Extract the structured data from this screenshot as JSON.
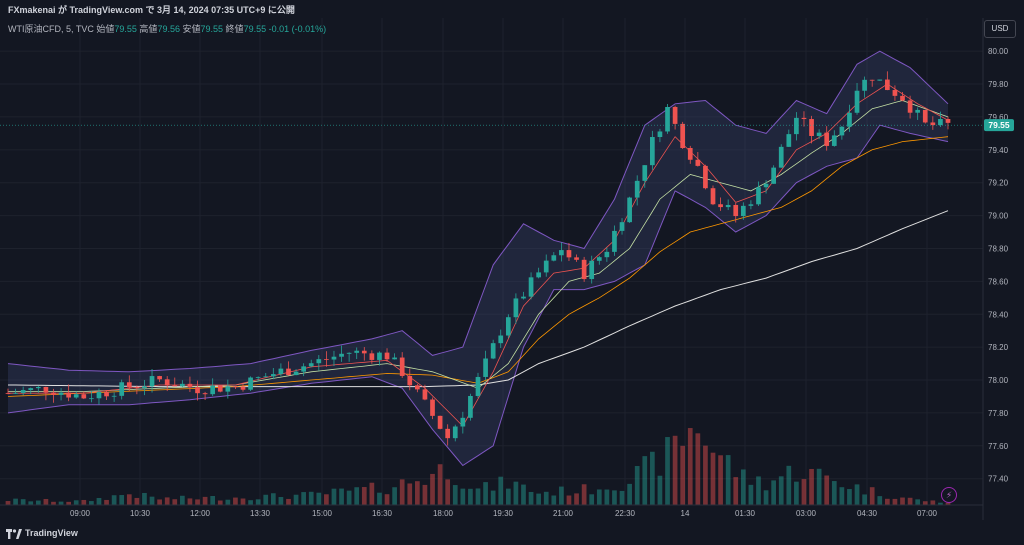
{
  "header": {
    "publish_line": "FXmakenai が TradingView.com で 3月 14, 2024 07:35 UTC+9 に公開"
  },
  "legend": {
    "symbol": "WTI原油CFD, 5, TVC",
    "open_label": "始値",
    "open_value": "79.55",
    "high_label": "高値",
    "high_value": "79.56",
    "low_label": "安値",
    "low_value": "79.55",
    "close_label": "終値",
    "close_value": "79.55",
    "change": "-0.01 (-0.01%)"
  },
  "currency_button": "USD",
  "last_price_label": "79.55",
  "brand": "TradingView",
  "colors": {
    "background": "#131722",
    "up": "#26a69a",
    "down": "#ef5350",
    "bollinger": "#7e57c2",
    "ma_fast": "#ef5350",
    "ma_mid": "#c5e1a5",
    "ma_slow": "#ff9800",
    "ma_long": "#e0e0e0",
    "last_price": "#26a69a"
  },
  "chart_data": {
    "type": "candlestick",
    "ylim": [
      77.24,
      80.08
    ],
    "y_ticks": [
      80.0,
      79.8,
      79.6,
      79.4,
      79.2,
      79.0,
      78.8,
      78.6,
      78.4,
      78.2,
      78.0,
      77.8,
      77.6,
      77.4
    ],
    "y_tick_labels": [
      "80.00",
      "79.80",
      "79.60",
      "79.40",
      "79.20",
      "79.00",
      "78.80",
      "78.60",
      "78.40",
      "78.20",
      "78.00",
      "77.80",
      "77.60",
      "77.40"
    ],
    "x_tick_labels": [
      "09:00",
      "10:30",
      "12:00",
      "13:30",
      "15:00",
      "16:30",
      "18:00",
      "19:30",
      "21:00",
      "22:30",
      "14",
      "01:30",
      "03:00",
      "04:30",
      "07:00"
    ],
    "last_price": 79.55,
    "price_path": [
      [
        0,
        77.92
      ],
      [
        5,
        77.95
      ],
      [
        10,
        77.9
      ],
      [
        15,
        77.95
      ],
      [
        20,
        78.0
      ],
      [
        25,
        77.95
      ],
      [
        30,
        77.96
      ],
      [
        35,
        78.04
      ],
      [
        40,
        78.1
      ],
      [
        45,
        78.17
      ],
      [
        50,
        78.15
      ],
      [
        52,
        78.05
      ],
      [
        55,
        77.85
      ],
      [
        58,
        77.65
      ],
      [
        60,
        77.8
      ],
      [
        63,
        78.1
      ],
      [
        66,
        78.4
      ],
      [
        70,
        78.65
      ],
      [
        73,
        78.8
      ],
      [
        76,
        78.65
      ],
      [
        79,
        78.8
      ],
      [
        82,
        79.1
      ],
      [
        85,
        79.45
      ],
      [
        87,
        79.65
      ],
      [
        89,
        79.45
      ],
      [
        91,
        79.3
      ],
      [
        93,
        79.1
      ],
      [
        96,
        79.0
      ],
      [
        99,
        79.15
      ],
      [
        101,
        79.3
      ],
      [
        104,
        79.6
      ],
      [
        106,
        79.5
      ],
      [
        108,
        79.45
      ],
      [
        110,
        79.55
      ],
      [
        112,
        79.78
      ],
      [
        114,
        79.85
      ],
      [
        116,
        79.78
      ],
      [
        118,
        79.72
      ],
      [
        121,
        79.55
      ],
      [
        124,
        79.55
      ]
    ],
    "bb_upper": [
      [
        0,
        78.1
      ],
      [
        8,
        78.06
      ],
      [
        16,
        78.05
      ],
      [
        24,
        78.07
      ],
      [
        32,
        78.1
      ],
      [
        40,
        78.18
      ],
      [
        48,
        78.25
      ],
      [
        52,
        78.3
      ],
      [
        56,
        78.15
      ],
      [
        60,
        78.2
      ],
      [
        64,
        78.7
      ],
      [
        68,
        78.95
      ],
      [
        72,
        78.85
      ],
      [
        76,
        78.8
      ],
      [
        80,
        79.1
      ],
      [
        84,
        79.55
      ],
      [
        88,
        79.68
      ],
      [
        92,
        79.7
      ],
      [
        96,
        79.55
      ],
      [
        100,
        79.5
      ],
      [
        104,
        79.7
      ],
      [
        108,
        79.62
      ],
      [
        112,
        79.92
      ],
      [
        115,
        80.0
      ],
      [
        119,
        79.9
      ],
      [
        124,
        79.68
      ]
    ],
    "bb_lower": [
      [
        0,
        77.8
      ],
      [
        8,
        77.85
      ],
      [
        16,
        77.85
      ],
      [
        24,
        77.88
      ],
      [
        32,
        77.92
      ],
      [
        40,
        77.98
      ],
      [
        48,
        78.02
      ],
      [
        52,
        77.95
      ],
      [
        56,
        77.7
      ],
      [
        60,
        77.48
      ],
      [
        64,
        77.6
      ],
      [
        68,
        78.2
      ],
      [
        72,
        78.55
      ],
      [
        76,
        78.55
      ],
      [
        80,
        78.6
      ],
      [
        84,
        78.7
      ],
      [
        88,
        79.15
      ],
      [
        92,
        79.05
      ],
      [
        96,
        78.9
      ],
      [
        100,
        79.0
      ],
      [
        104,
        79.2
      ],
      [
        108,
        79.3
      ],
      [
        112,
        79.35
      ],
      [
        115,
        79.55
      ],
      [
        119,
        79.5
      ],
      [
        124,
        79.45
      ]
    ],
    "ma_fast": [
      [
        0,
        77.92
      ],
      [
        10,
        77.92
      ],
      [
        20,
        77.97
      ],
      [
        30,
        77.97
      ],
      [
        40,
        78.08
      ],
      [
        50,
        78.12
      ],
      [
        55,
        77.95
      ],
      [
        60,
        77.72
      ],
      [
        64,
        78.05
      ],
      [
        68,
        78.45
      ],
      [
        72,
        78.65
      ],
      [
        76,
        78.68
      ],
      [
        80,
        78.85
      ],
      [
        84,
        79.2
      ],
      [
        88,
        79.48
      ],
      [
        92,
        79.3
      ],
      [
        96,
        79.08
      ],
      [
        100,
        79.15
      ],
      [
        104,
        79.4
      ],
      [
        108,
        79.5
      ],
      [
        112,
        79.68
      ],
      [
        116,
        79.8
      ],
      [
        120,
        79.68
      ],
      [
        124,
        79.58
      ]
    ],
    "ma_mid": [
      [
        0,
        77.93
      ],
      [
        10,
        77.93
      ],
      [
        20,
        77.95
      ],
      [
        30,
        77.97
      ],
      [
        40,
        78.05
      ],
      [
        50,
        78.1
      ],
      [
        56,
        78.05
      ],
      [
        62,
        77.95
      ],
      [
        66,
        78.1
      ],
      [
        70,
        78.4
      ],
      [
        74,
        78.6
      ],
      [
        78,
        78.65
      ],
      [
        82,
        78.8
      ],
      [
        86,
        79.1
      ],
      [
        90,
        79.25
      ],
      [
        94,
        79.2
      ],
      [
        98,
        79.15
      ],
      [
        102,
        79.25
      ],
      [
        106,
        79.38
      ],
      [
        110,
        79.5
      ],
      [
        114,
        79.65
      ],
      [
        118,
        79.7
      ],
      [
        124,
        79.6
      ]
    ],
    "ma_slow": [
      [
        0,
        77.9
      ],
      [
        10,
        77.92
      ],
      [
        20,
        77.94
      ],
      [
        30,
        77.96
      ],
      [
        40,
        78.0
      ],
      [
        50,
        78.04
      ],
      [
        56,
        78.03
      ],
      [
        62,
        77.98
      ],
      [
        66,
        78.05
      ],
      [
        70,
        78.25
      ],
      [
        74,
        78.4
      ],
      [
        78,
        78.5
      ],
      [
        82,
        78.62
      ],
      [
        86,
        78.78
      ],
      [
        90,
        78.9
      ],
      [
        94,
        78.95
      ],
      [
        98,
        79.0
      ],
      [
        102,
        79.05
      ],
      [
        106,
        79.15
      ],
      [
        110,
        79.3
      ],
      [
        114,
        79.4
      ],
      [
        118,
        79.45
      ],
      [
        124,
        79.48
      ]
    ],
    "ma_long": [
      [
        0,
        77.97
      ],
      [
        20,
        77.96
      ],
      [
        40,
        77.96
      ],
      [
        55,
        77.96
      ],
      [
        62,
        77.97
      ],
      [
        66,
        78.0
      ],
      [
        70,
        78.1
      ],
      [
        76,
        78.2
      ],
      [
        82,
        78.33
      ],
      [
        88,
        78.45
      ],
      [
        94,
        78.55
      ],
      [
        100,
        78.62
      ],
      [
        106,
        78.72
      ],
      [
        112,
        78.8
      ],
      [
        118,
        78.92
      ],
      [
        124,
        79.03
      ]
    ],
    "volume_profile": [
      [
        0,
        4
      ],
      [
        10,
        3
      ],
      [
        16,
        9
      ],
      [
        20,
        5
      ],
      [
        30,
        6
      ],
      [
        40,
        8
      ],
      [
        50,
        14
      ],
      [
        55,
        22
      ],
      [
        58,
        30
      ],
      [
        62,
        12
      ],
      [
        66,
        18
      ],
      [
        70,
        10
      ],
      [
        76,
        12
      ],
      [
        82,
        20
      ],
      [
        87,
        40
      ],
      [
        89,
        55
      ],
      [
        91,
        65
      ],
      [
        93,
        45
      ],
      [
        97,
        22
      ],
      [
        100,
        18
      ],
      [
        104,
        28
      ],
      [
        108,
        22
      ],
      [
        112,
        14
      ],
      [
        116,
        8
      ],
      [
        120,
        4
      ],
      [
        124,
        2
      ]
    ]
  }
}
